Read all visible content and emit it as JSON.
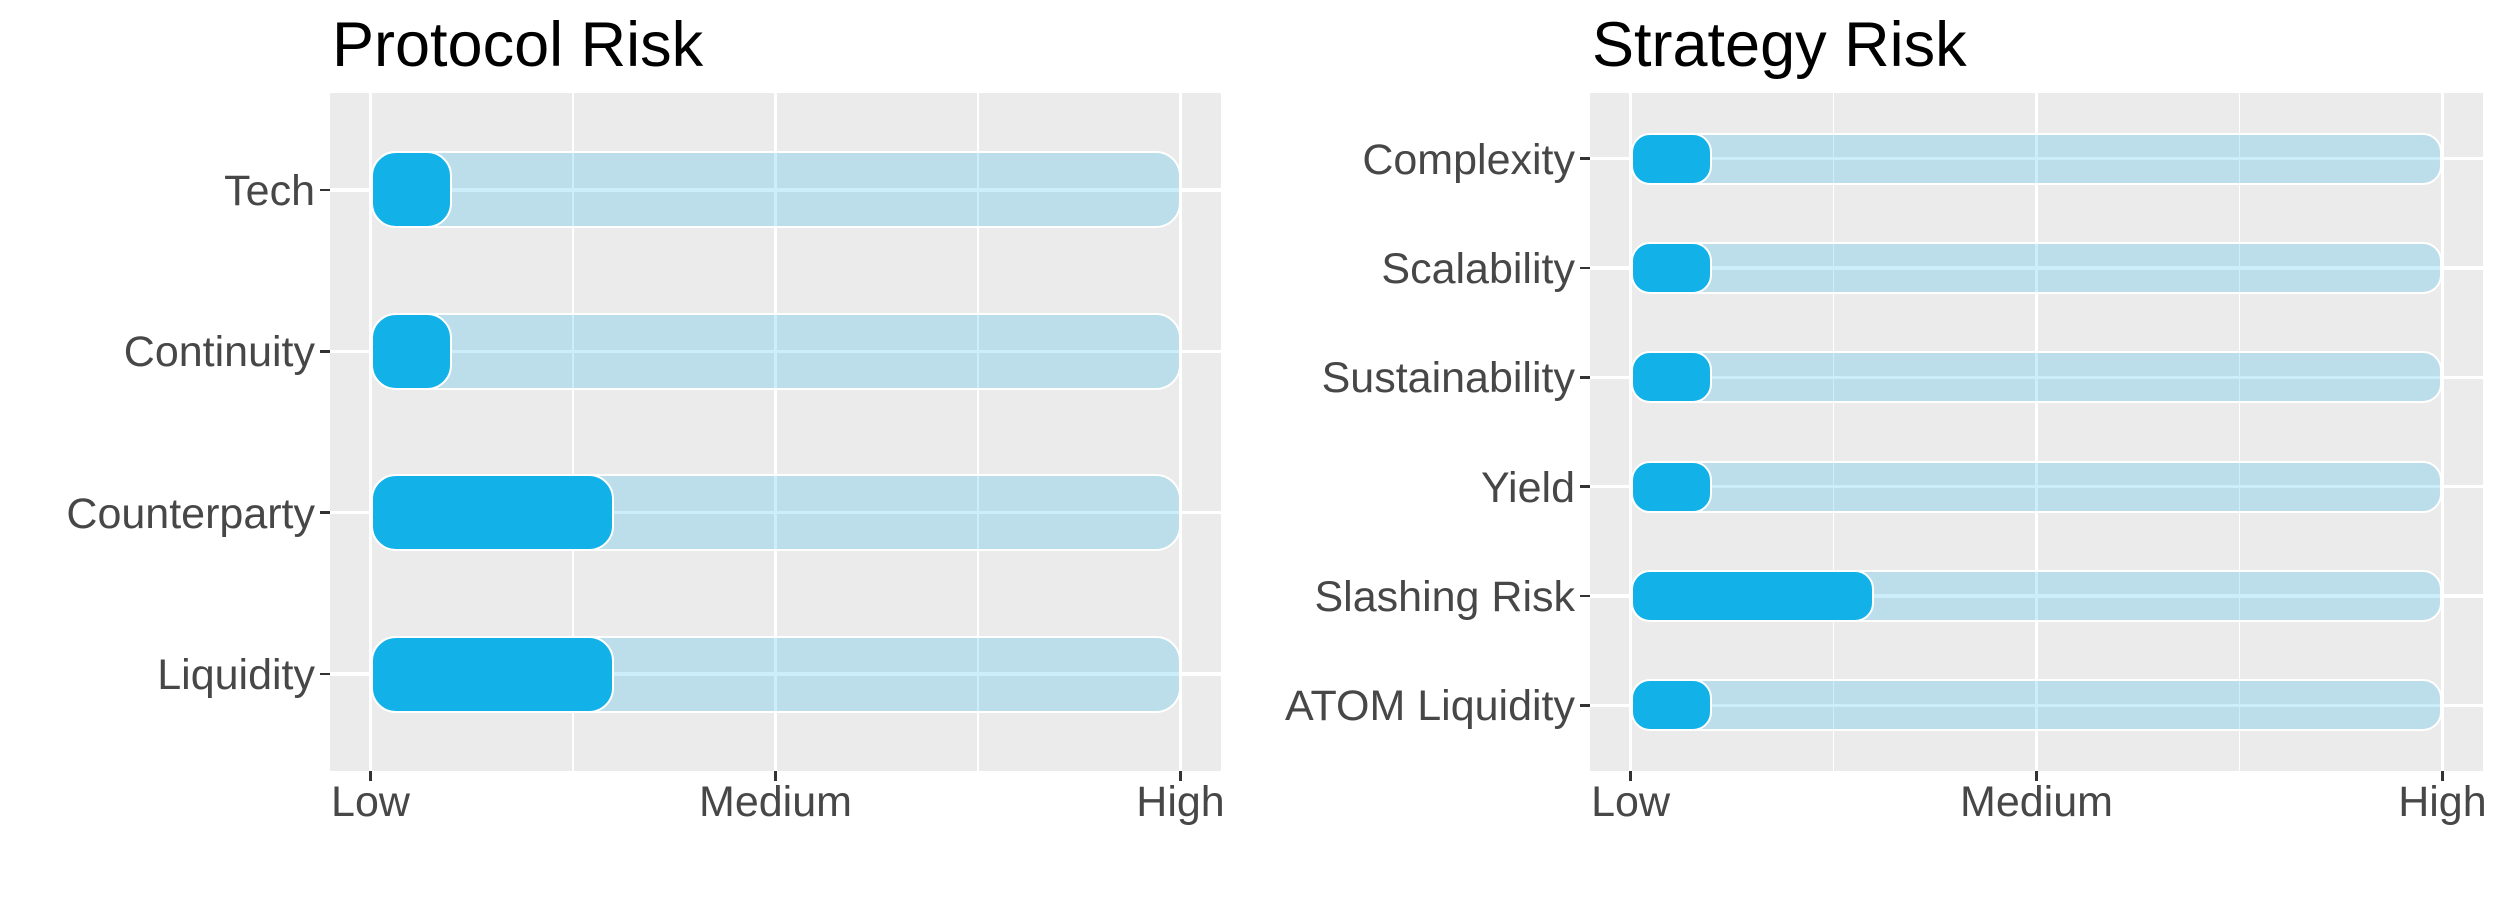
{
  "style": {
    "bar_color": "#12B1E8",
    "track_color": "rgba(18,177,232,0.22)",
    "panel_color": "#EBEBEB",
    "gridline_color": "#FFFFFF",
    "axis_text_color": "#474747",
    "title_color": "#000000",
    "tick_color": "#333333"
  },
  "chart_data": [
    {
      "type": "bar",
      "orientation": "horizontal",
      "title": "Protocol Risk",
      "categories": [
        "Tech",
        "Continuity",
        "Counterparty",
        "Liquidity"
      ],
      "values": [
        1.2,
        1.2,
        1.6,
        1.6
      ],
      "bar_base": 1,
      "track_range": [
        1,
        3
      ],
      "x_tick_labels": [
        "Low",
        "Medium",
        "High"
      ],
      "x_tick_values": [
        1,
        2,
        3
      ],
      "x_minor_values": [
        1.5,
        2.5
      ],
      "xlim": [
        0.9,
        3.1
      ],
      "legend": "none",
      "grid": "white major and minor gridlines on gray panel"
    },
    {
      "type": "bar",
      "orientation": "horizontal",
      "title": "Strategy Risk",
      "categories": [
        "Complexity",
        "Scalability",
        "Sustainability",
        "Yield",
        "Slashing Risk",
        "ATOM Liquidity"
      ],
      "values": [
        1.2,
        1.2,
        1.2,
        1.2,
        1.6,
        1.2
      ],
      "bar_base": 1,
      "track_range": [
        1,
        3
      ],
      "x_tick_labels": [
        "Low",
        "Medium",
        "High"
      ],
      "x_tick_values": [
        1,
        2,
        3
      ],
      "x_minor_values": [
        1.5,
        2.5
      ],
      "xlim": [
        0.9,
        3.1
      ],
      "legend": "none",
      "grid": "white major and minor gridlines on gray panel"
    }
  ]
}
